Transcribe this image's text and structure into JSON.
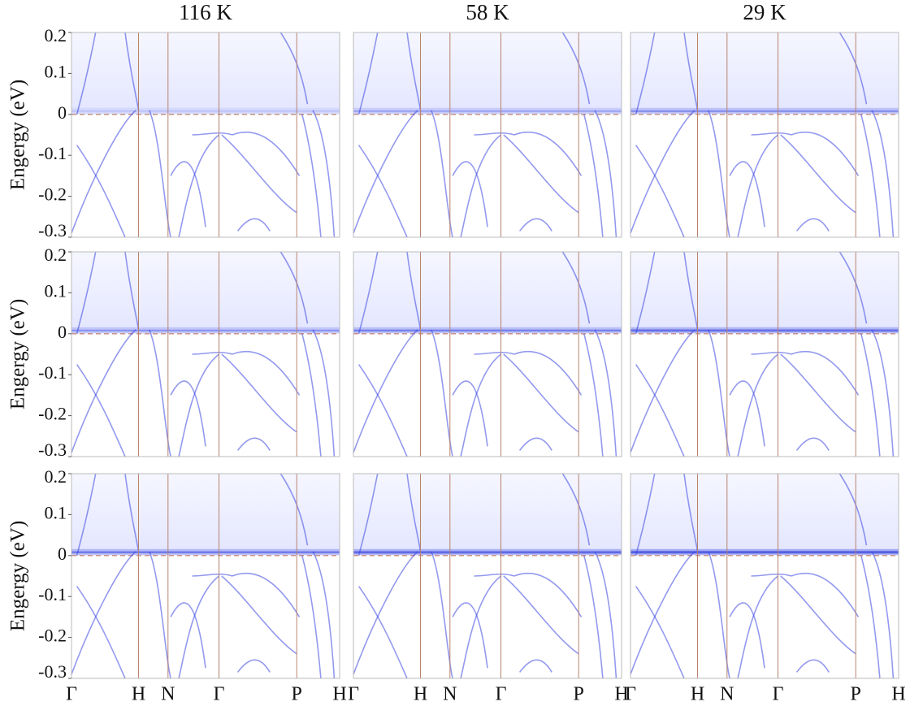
{
  "chart_data": [
    {
      "type": "band",
      "title": "116 K",
      "ylabel": "Engergy (eV)",
      "ylim": [
        -0.3,
        0.2
      ],
      "yticks": [
        0.2,
        0.1,
        0,
        -0.1,
        -0.2,
        -0.3
      ],
      "hline": 0
    },
    {
      "type": "band",
      "title": "58 K",
      "ylim": [
        -0.3,
        0.2
      ],
      "hline": 0
    },
    {
      "type": "band",
      "title": "29 K",
      "ylim": [
        -0.3,
        0.2
      ],
      "hline": 0
    },
    {
      "type": "band",
      "ylabel": "Engergy (eV)",
      "ylim": [
        -0.3,
        0.2
      ],
      "yticks": [
        0.2,
        0.1,
        0,
        -0.1,
        -0.2,
        -0.3
      ],
      "hline": 0
    },
    {
      "type": "band",
      "ylim": [
        -0.3,
        0.2
      ],
      "hline": 0
    },
    {
      "type": "band",
      "ylim": [
        -0.3,
        0.2
      ],
      "hline": 0
    },
    {
      "type": "band",
      "ylabel": "Engergy (eV)",
      "ylim": [
        -0.3,
        0.2
      ],
      "yticks": [
        0.2,
        0.1,
        0,
        -0.1,
        -0.2,
        -0.3
      ],
      "hline": 0,
      "categories": [
        "Γ",
        "H",
        "N",
        "Γ",
        "P",
        "H"
      ]
    },
    {
      "type": "band",
      "ylim": [
        -0.3,
        0.2
      ],
      "hline": 0,
      "categories": [
        "Γ",
        "H",
        "N",
        "Γ",
        "P",
        "H"
      ]
    },
    {
      "type": "band",
      "ylim": [
        -0.3,
        0.2
      ],
      "hline": 0,
      "categories": [
        "Γ",
        "H",
        "N",
        "Γ",
        "P",
        "H"
      ]
    }
  ]
}
